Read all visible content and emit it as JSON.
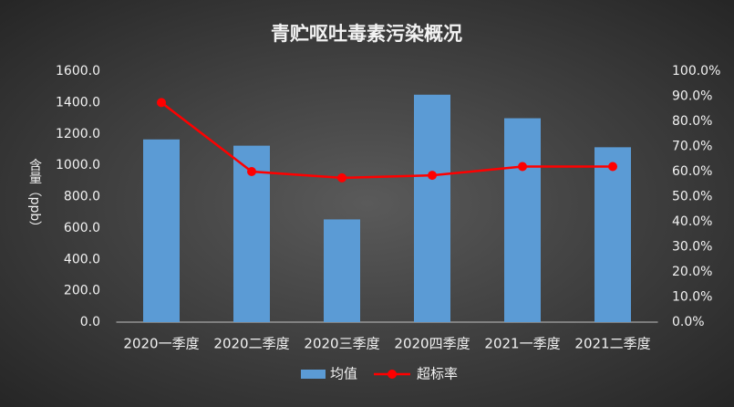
{
  "chart_data": {
    "type": "bar-line",
    "title": "青贮呕吐毒素污染概况",
    "y_label": "含量（ppb）",
    "categories": [
      "2020一季度",
      "2020二季度",
      "2020三季度",
      "2020四季度",
      "2021一季度",
      "2021二季度"
    ],
    "series": [
      {
        "name": "均值",
        "type": "bar",
        "color": "#5b9bd5",
        "values": [
          1165,
          1125,
          655,
          1450,
          1300,
          1115
        ]
      },
      {
        "name": "超标率",
        "type": "line",
        "axis": "y2",
        "color": "#ff0000",
        "values": [
          87.5,
          60,
          57.5,
          58.5,
          62,
          62
        ]
      }
    ],
    "ylim": [
      0,
      1600
    ],
    "yticks": [
      {
        "value": 0,
        "label": "0.0"
      },
      {
        "value": 200,
        "label": "200.0"
      },
      {
        "value": 400,
        "label": "400.0"
      },
      {
        "value": 600,
        "label": "600.0"
      },
      {
        "value": 800,
        "label": "800.0"
      },
      {
        "value": 1000,
        "label": "1000.0"
      },
      {
        "value": 1200,
        "label": "1200.0"
      },
      {
        "value": 1400,
        "label": "1400.0"
      },
      {
        "value": 1600,
        "label": "1600.0"
      }
    ],
    "y2lim": [
      0,
      100
    ],
    "y2ticks": [
      {
        "value": 0,
        "label": "0.0%"
      },
      {
        "value": 10,
        "label": "10.0%"
      },
      {
        "value": 20,
        "label": "20.0%"
      },
      {
        "value": 30,
        "label": "30.0%"
      },
      {
        "value": 40,
        "label": "40.0%"
      },
      {
        "value": 50,
        "label": "50.0%"
      },
      {
        "value": 60,
        "label": "60.0%"
      },
      {
        "value": 70,
        "label": "70.0%"
      },
      {
        "value": 80,
        "label": "80.0%"
      },
      {
        "value": 90,
        "label": "90.0%"
      },
      {
        "value": 100,
        "label": "100.0%"
      }
    ],
    "legend": "bottom"
  }
}
